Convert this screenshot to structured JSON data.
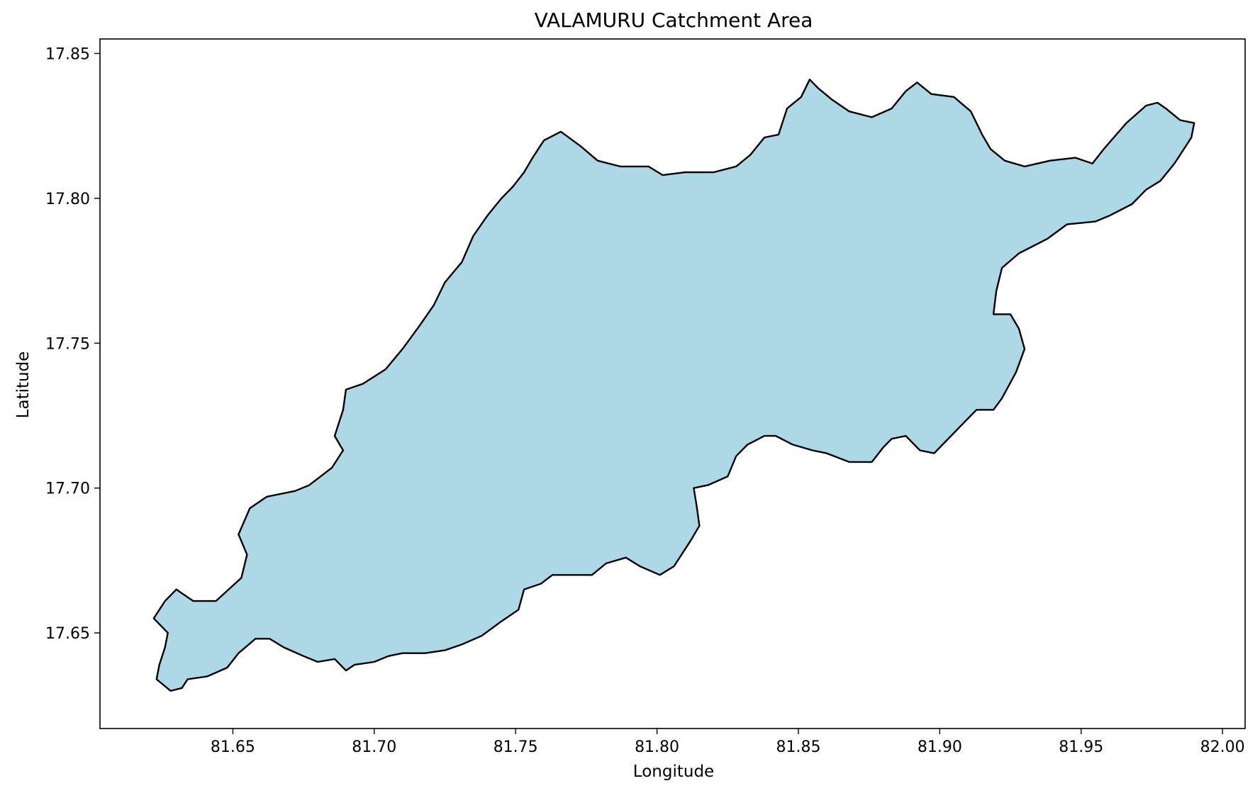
{
  "chart_data": {
    "type": "map",
    "title": "VALAMURU Catchment Area",
    "xlabel": "Longitude",
    "ylabel": "Latitude",
    "xlim": [
      81.603,
      82.008
    ],
    "ylim": [
      17.617,
      17.855
    ],
    "xticks": [
      {
        "value": 81.65,
        "label": "81.65"
      },
      {
        "value": 81.7,
        "label": "81.70"
      },
      {
        "value": 81.75,
        "label": "81.75"
      },
      {
        "value": 81.8,
        "label": "81.80"
      },
      {
        "value": 81.85,
        "label": "81.85"
      },
      {
        "value": 81.9,
        "label": "81.90"
      },
      {
        "value": 81.95,
        "label": "81.95"
      },
      {
        "value": 82.0,
        "label": "82.00"
      }
    ],
    "yticks": [
      {
        "value": 17.65,
        "label": "17.65"
      },
      {
        "value": 17.7,
        "label": "17.70"
      },
      {
        "value": 17.75,
        "label": "17.75"
      },
      {
        "value": 17.8,
        "label": "17.80"
      },
      {
        "value": 17.85,
        "label": "17.85"
      }
    ],
    "grid": false,
    "fill_color": "#add8e6",
    "edge_color": "#000000",
    "boundary": [
      [
        81.623,
        17.634
      ],
      [
        81.628,
        17.63
      ],
      [
        81.632,
        17.631
      ],
      [
        81.634,
        17.634
      ],
      [
        81.641,
        17.635
      ],
      [
        81.648,
        17.638
      ],
      [
        81.652,
        17.643
      ],
      [
        81.658,
        17.648
      ],
      [
        81.663,
        17.648
      ],
      [
        81.668,
        17.645
      ],
      [
        81.675,
        17.642
      ],
      [
        81.68,
        17.64
      ],
      [
        81.686,
        17.641
      ],
      [
        81.69,
        17.637
      ],
      [
        81.693,
        17.639
      ],
      [
        81.7,
        17.64
      ],
      [
        81.705,
        17.642
      ],
      [
        81.71,
        17.643
      ],
      [
        81.718,
        17.643
      ],
      [
        81.725,
        17.644
      ],
      [
        81.731,
        17.646
      ],
      [
        81.738,
        17.649
      ],
      [
        81.745,
        17.654
      ],
      [
        81.751,
        17.658
      ],
      [
        81.753,
        17.665
      ],
      [
        81.759,
        17.667
      ],
      [
        81.763,
        17.67
      ],
      [
        81.77,
        17.67
      ],
      [
        81.777,
        17.67
      ],
      [
        81.782,
        17.674
      ],
      [
        81.789,
        17.676
      ],
      [
        81.794,
        17.673
      ],
      [
        81.801,
        17.67
      ],
      [
        81.806,
        17.673
      ],
      [
        81.812,
        17.682
      ],
      [
        81.815,
        17.687
      ],
      [
        81.814,
        17.694
      ],
      [
        81.813,
        17.7
      ],
      [
        81.818,
        17.701
      ],
      [
        81.825,
        17.704
      ],
      [
        81.828,
        17.711
      ],
      [
        81.832,
        17.715
      ],
      [
        81.838,
        17.718
      ],
      [
        81.842,
        17.718
      ],
      [
        81.848,
        17.715
      ],
      [
        81.855,
        17.713
      ],
      [
        81.86,
        17.712
      ],
      [
        81.868,
        17.709
      ],
      [
        81.876,
        17.709
      ],
      [
        81.88,
        17.714
      ],
      [
        81.883,
        17.717
      ],
      [
        81.888,
        17.718
      ],
      [
        81.893,
        17.713
      ],
      [
        81.898,
        17.712
      ],
      [
        81.904,
        17.718
      ],
      [
        81.909,
        17.723
      ],
      [
        81.913,
        17.727
      ],
      [
        81.919,
        17.727
      ],
      [
        81.922,
        17.731
      ],
      [
        81.927,
        17.74
      ],
      [
        81.93,
        17.748
      ],
      [
        81.928,
        17.755
      ],
      [
        81.925,
        17.76
      ],
      [
        81.919,
        17.76
      ],
      [
        81.92,
        17.768
      ],
      [
        81.922,
        17.776
      ],
      [
        81.928,
        17.781
      ],
      [
        81.938,
        17.786
      ],
      [
        81.945,
        17.791
      ],
      [
        81.955,
        17.792
      ],
      [
        81.96,
        17.794
      ],
      [
        81.968,
        17.798
      ],
      [
        81.973,
        17.803
      ],
      [
        81.978,
        17.806
      ],
      [
        81.983,
        17.812
      ],
      [
        81.987,
        17.818
      ],
      [
        81.989,
        17.821
      ],
      [
        81.99,
        17.826
      ],
      [
        81.985,
        17.827
      ],
      [
        81.98,
        17.831
      ],
      [
        81.977,
        17.833
      ],
      [
        81.973,
        17.832
      ],
      [
        81.966,
        17.826
      ],
      [
        81.958,
        17.817
      ],
      [
        81.954,
        17.812
      ],
      [
        81.948,
        17.814
      ],
      [
        81.939,
        17.813
      ],
      [
        81.93,
        17.811
      ],
      [
        81.923,
        17.813
      ],
      [
        81.918,
        17.817
      ],
      [
        81.915,
        17.822
      ],
      [
        81.911,
        17.83
      ],
      [
        81.905,
        17.835
      ],
      [
        81.897,
        17.836
      ],
      [
        81.892,
        17.84
      ],
      [
        81.888,
        17.837
      ],
      [
        81.883,
        17.831
      ],
      [
        81.876,
        17.828
      ],
      [
        81.868,
        17.83
      ],
      [
        81.862,
        17.834
      ],
      [
        81.857,
        17.838
      ],
      [
        81.854,
        17.841
      ],
      [
        81.851,
        17.835
      ],
      [
        81.846,
        17.831
      ],
      [
        81.843,
        17.822
      ],
      [
        81.838,
        17.821
      ],
      [
        81.833,
        17.815
      ],
      [
        81.828,
        17.811
      ],
      [
        81.82,
        17.809
      ],
      [
        81.81,
        17.809
      ],
      [
        81.802,
        17.808
      ],
      [
        81.797,
        17.811
      ],
      [
        81.787,
        17.811
      ],
      [
        81.779,
        17.813
      ],
      [
        81.773,
        17.818
      ],
      [
        81.766,
        17.823
      ],
      [
        81.76,
        17.82
      ],
      [
        81.756,
        17.814
      ],
      [
        81.753,
        17.809
      ],
      [
        81.749,
        17.804
      ],
      [
        81.745,
        17.8
      ],
      [
        81.74,
        17.794
      ],
      [
        81.735,
        17.787
      ],
      [
        81.731,
        17.778
      ],
      [
        81.725,
        17.771
      ],
      [
        81.721,
        17.763
      ],
      [
        81.716,
        17.756
      ],
      [
        81.71,
        17.748
      ],
      [
        81.704,
        17.741
      ],
      [
        81.696,
        17.736
      ],
      [
        81.69,
        17.734
      ],
      [
        81.689,
        17.727
      ],
      [
        81.686,
        17.718
      ],
      [
        81.689,
        17.713
      ],
      [
        81.685,
        17.707
      ],
      [
        81.677,
        17.701
      ],
      [
        81.672,
        17.699
      ],
      [
        81.662,
        17.697
      ],
      [
        81.656,
        17.693
      ],
      [
        81.652,
        17.684
      ],
      [
        81.655,
        17.677
      ],
      [
        81.653,
        17.669
      ],
      [
        81.644,
        17.661
      ],
      [
        81.636,
        17.661
      ],
      [
        81.63,
        17.665
      ],
      [
        81.626,
        17.661
      ],
      [
        81.622,
        17.655
      ],
      [
        81.627,
        17.65
      ],
      [
        81.626,
        17.645
      ],
      [
        81.624,
        17.639
      ],
      [
        81.623,
        17.634
      ]
    ]
  }
}
